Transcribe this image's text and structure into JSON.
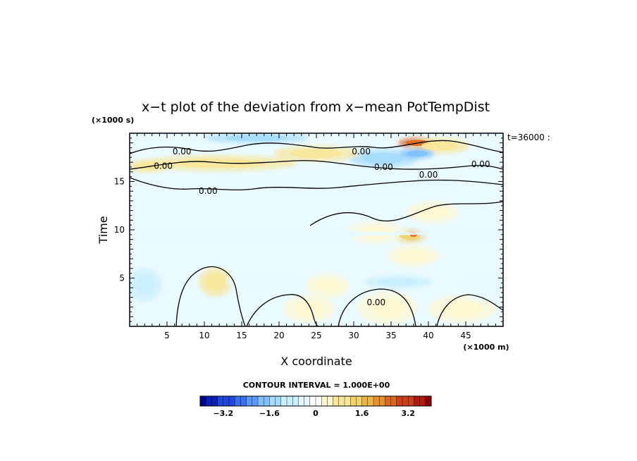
{
  "chart_data": {
    "type": "heatmap",
    "title": "x−t plot of the deviation from x−mean PotTempDist",
    "xlabel": "X coordinate",
    "ylabel": "Time",
    "x_unit": "(×1000 m)",
    "y_unit": "(×1000 s)",
    "xlim": [
      0,
      50
    ],
    "ylim": [
      0,
      20
    ],
    "x_ticks": [
      5,
      10,
      15,
      20,
      25,
      30,
      35,
      40,
      45
    ],
    "y_ticks": [
      5,
      10,
      15
    ],
    "time_stamp": "t=36000 :",
    "contour_interval_label": "CONTOUR INTERVAL = 1.000E+00",
    "contour_label_text": "0.00",
    "contour_labels": [
      {
        "x": 7.0,
        "y": 18.1
      },
      {
        "x": 31.0,
        "y": 18.1
      },
      {
        "x": 4.5,
        "y": 16.6
      },
      {
        "x": 34.0,
        "y": 16.5
      },
      {
        "x": 40.0,
        "y": 15.7
      },
      {
        "x": 47.0,
        "y": 16.8
      },
      {
        "x": 10.5,
        "y": 14.0
      },
      {
        "x": 33.0,
        "y": 2.5
      }
    ],
    "colorbar": {
      "min": -4.0,
      "max": 4.0,
      "step": 0.2,
      "tick_values": [
        -3.2,
        -1.6,
        0,
        1.6,
        3.2
      ],
      "tick_labels": [
        "−3.2",
        "−1.6",
        "0",
        "1.6",
        "3.2"
      ],
      "colors_low_to_high": [
        "#00008b",
        "#0a1fb4",
        "#1f45d9",
        "#3a6ef0",
        "#5a98fa",
        "#7fc0fc",
        "#a5dcfd",
        "#c9eefe",
        "#e6f8ff",
        "#ffffff",
        "#fdf6d0",
        "#f8e79b",
        "#f2d26a",
        "#ebb447",
        "#e4902f",
        "#d96722",
        "#c93f18",
        "#b01a10",
        "#8b0000"
      ]
    },
    "features": [
      {
        "kind": "warm",
        "x": 38.5,
        "y": 19.0,
        "rx": 2.2,
        "ry": 0.4,
        "value": 2.5
      },
      {
        "kind": "warm",
        "x": 41.5,
        "y": 18.7,
        "rx": 3.5,
        "ry": 0.6,
        "value": 1.0
      },
      {
        "kind": "cold",
        "x": 17.0,
        "y": 19.5,
        "rx": 6.0,
        "ry": 0.4,
        "value": -1.3
      },
      {
        "kind": "cold",
        "x": 34.0,
        "y": 17.4,
        "rx": 4.0,
        "ry": 0.7,
        "value": -1.2
      },
      {
        "kind": "cold",
        "x": 38.5,
        "y": 17.9,
        "rx": 2.0,
        "ry": 0.4,
        "value": -1.8
      },
      {
        "kind": "warm",
        "x": 25.0,
        "y": 17.9,
        "rx": 5.0,
        "ry": 0.6,
        "value": 0.8
      },
      {
        "kind": "warm",
        "x": 12.0,
        "y": 16.9,
        "rx": 9.0,
        "ry": 0.6,
        "value": 0.9
      },
      {
        "kind": "warm",
        "x": 2.5,
        "y": 16.6,
        "rx": 2.5,
        "ry": 0.5,
        "value": 0.9
      },
      {
        "kind": "cold",
        "x": 28.0,
        "y": 14.8,
        "rx": 14.0,
        "ry": 0.6,
        "value": -0.5
      },
      {
        "kind": "warm",
        "x": 37.5,
        "y": 9.4,
        "rx": 2.0,
        "ry": 0.5,
        "value": 1.4
      },
      {
        "kind": "warm",
        "x": 38.0,
        "y": 9.5,
        "rx": 0.7,
        "ry": 0.3,
        "value": 2.6
      },
      {
        "kind": "warm",
        "x": 40.5,
        "y": 11.8,
        "rx": 3.0,
        "ry": 0.8,
        "value": 0.6
      },
      {
        "kind": "warm",
        "x": 33.0,
        "y": 9.7,
        "rx": 3.5,
        "ry": 0.8,
        "value": 0.6
      },
      {
        "kind": "warm",
        "x": 38.0,
        "y": 7.3,
        "rx": 3.0,
        "ry": 0.8,
        "value": 0.5
      },
      {
        "kind": "warm",
        "x": 11.5,
        "y": 4.6,
        "rx": 2.0,
        "ry": 1.1,
        "value": 0.7
      },
      {
        "kind": "warm",
        "x": 26.5,
        "y": 4.2,
        "rx": 2.5,
        "ry": 0.9,
        "value": 0.5
      },
      {
        "kind": "warm",
        "x": 24.0,
        "y": 1.8,
        "rx": 3.0,
        "ry": 1.0,
        "value": 0.4
      },
      {
        "kind": "warm",
        "x": 34.5,
        "y": 1.9,
        "rx": 3.5,
        "ry": 1.2,
        "value": 0.4
      },
      {
        "kind": "warm",
        "x": 44.5,
        "y": 1.8,
        "rx": 4.0,
        "ry": 1.0,
        "value": 0.4
      },
      {
        "kind": "cold",
        "x": 2.0,
        "y": 4.3,
        "rx": 2.0,
        "ry": 1.2,
        "value": -0.8
      },
      {
        "kind": "cold",
        "x": 18.0,
        "y": 4.6,
        "rx": 4.5,
        "ry": 0.6,
        "value": -0.6
      },
      {
        "kind": "cold",
        "x": 36.0,
        "y": 4.6,
        "rx": 4.0,
        "ry": 0.5,
        "value": -0.7
      },
      {
        "kind": "cold",
        "x": 47.5,
        "y": 4.0,
        "rx": 2.5,
        "ry": 1.0,
        "value": -0.6
      },
      {
        "kind": "cold",
        "x": 24.0,
        "y": 9.6,
        "rx": 24.0,
        "ry": 0.3,
        "value": -0.3
      }
    ]
  }
}
